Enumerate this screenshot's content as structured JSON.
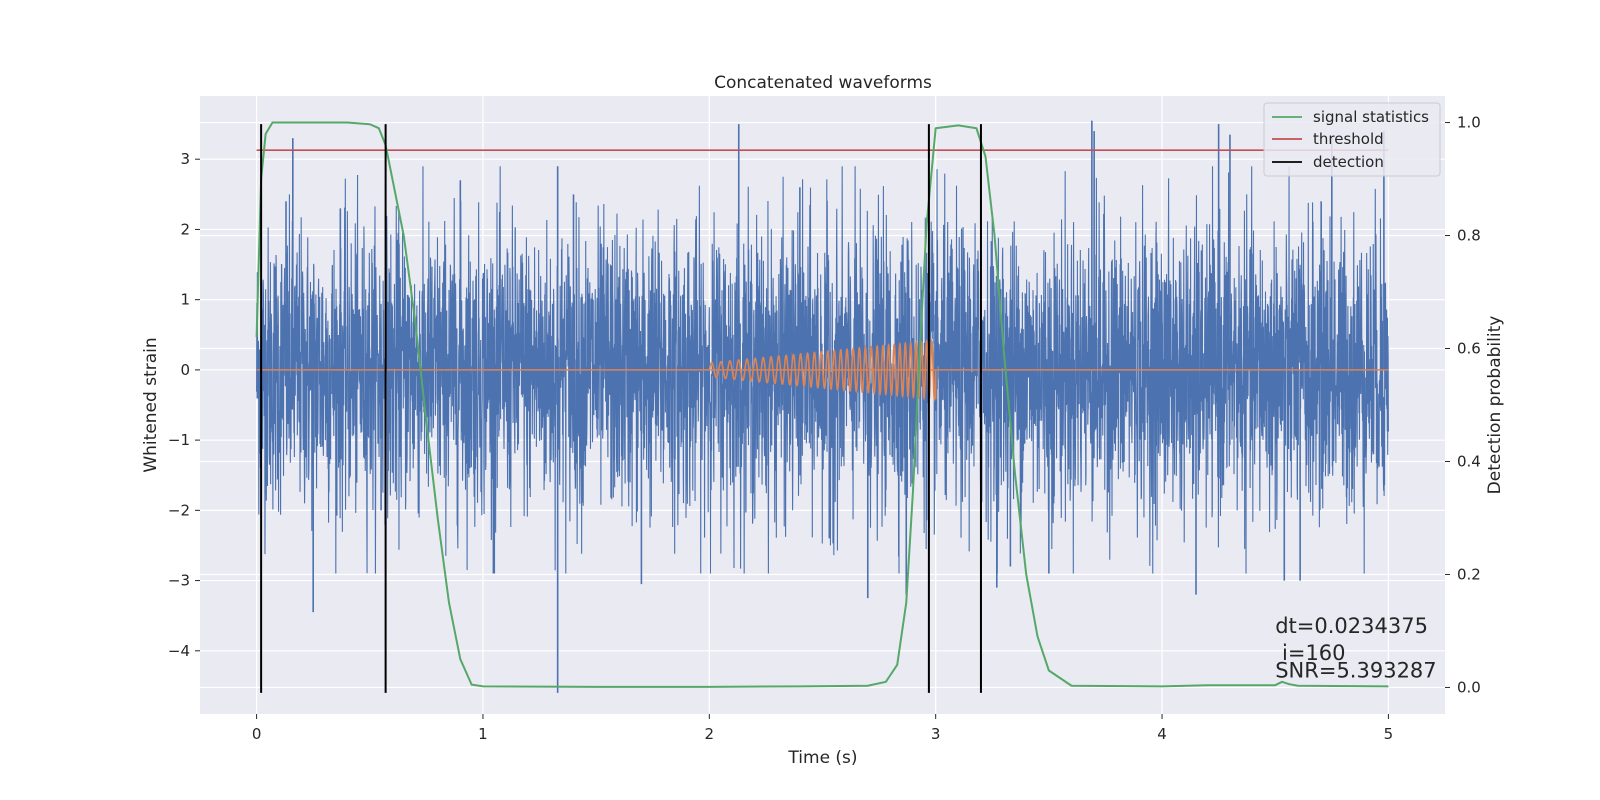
{
  "chart_data": {
    "type": "line",
    "title": "Concatenated waveforms",
    "xlabel": "Time (s)",
    "ylabel": "Whitened strain",
    "ylabel_right": "Detection probability",
    "xlim": [
      -0.25,
      5.25
    ],
    "ylim": [
      -4.9,
      3.9
    ],
    "ylim_right": [
      -0.047,
      1.047
    ],
    "xticks": [
      0,
      1,
      2,
      3,
      4,
      5
    ],
    "xtick_labels": [
      "0",
      "1",
      "2",
      "3",
      "4",
      "5"
    ],
    "yticks": [
      -4,
      -3,
      -2,
      -1,
      0,
      1,
      2,
      3
    ],
    "ytick_labels": [
      "−4",
      "−3",
      "−2",
      "−1",
      "0",
      "1",
      "2",
      "3"
    ],
    "yticks_right": [
      0.0,
      0.2,
      0.4,
      0.6,
      0.8,
      1.0
    ],
    "ytick_labels_right": [
      "0.0",
      "0.2",
      "0.4",
      "0.6",
      "0.8",
      "1.0"
    ],
    "grid": true,
    "legend_position": "top-right",
    "colors": {
      "background": "#eaeaf2",
      "grid": "#ffffff",
      "strain": "#4c72b0",
      "template": "#dd8452",
      "signal_statistics": "#55a868",
      "threshold": "#c44e52",
      "detection": "#000000"
    },
    "series": [
      {
        "name": "signal statistics",
        "axis": "right",
        "x": [
          0,
          0.02,
          0.04,
          0.07,
          0.1,
          0.2,
          0.3,
          0.4,
          0.5,
          0.54,
          0.57,
          0.6,
          0.65,
          0.7,
          0.75,
          0.8,
          0.85,
          0.9,
          0.95,
          1.0,
          1.5,
          2.0,
          2.4,
          2.7,
          2.78,
          2.83,
          2.87,
          2.9,
          2.93,
          2.96,
          3.0,
          3.1,
          3.18,
          3.22,
          3.26,
          3.3,
          3.35,
          3.4,
          3.45,
          3.5,
          3.6,
          4.0,
          4.2,
          4.5,
          4.53,
          4.56,
          4.6,
          5.0
        ],
        "y": [
          0.62,
          0.9,
          0.98,
          1.0,
          1.0,
          1.0,
          1.0,
          1.0,
          0.997,
          0.99,
          0.96,
          0.9,
          0.8,
          0.65,
          0.47,
          0.3,
          0.15,
          0.05,
          0.005,
          0.002,
          0.001,
          0.001,
          0.002,
          0.003,
          0.01,
          0.04,
          0.15,
          0.35,
          0.6,
          0.82,
          0.99,
          0.995,
          0.99,
          0.94,
          0.8,
          0.6,
          0.38,
          0.2,
          0.09,
          0.03,
          0.003,
          0.002,
          0.004,
          0.004,
          0.01,
          0.006,
          0.003,
          0.002
        ]
      },
      {
        "name": "threshold",
        "axis": "right",
        "x": [
          0,
          5
        ],
        "y": [
          0.951,
          0.951
        ]
      },
      {
        "name": "detection",
        "axis": "left",
        "vlines": [
          0.02,
          0.57,
          2.97,
          3.2
        ]
      }
    ],
    "strain_noise": {
      "axis": "left",
      "x_range": [
        0,
        5
      ],
      "amplitude_sigma": 1.0
    },
    "strain_spikes": [
      {
        "x": 0.25,
        "y": -3.45
      },
      {
        "x": 0.16,
        "y": 3.3
      },
      {
        "x": 0.13,
        "y": 2.4
      },
      {
        "x": 0.37,
        "y": 2.3
      },
      {
        "x": 0.57,
        "y": 2.25
      },
      {
        "x": 0.55,
        "y": -2.0
      },
      {
        "x": 1.33,
        "y": -4.6
      },
      {
        "x": 1.33,
        "y": 2.9
      },
      {
        "x": 1.7,
        "y": -3.05
      },
      {
        "x": 2.13,
        "y": 3.5
      },
      {
        "x": 2.4,
        "y": 2.6
      },
      {
        "x": 2.7,
        "y": -3.25
      },
      {
        "x": 2.87,
        "y": -3.2
      },
      {
        "x": 3.2,
        "y": -3.15
      },
      {
        "x": 3.27,
        "y": -3.1
      },
      {
        "x": 3.33,
        "y": -2.8
      },
      {
        "x": 3.69,
        "y": 3.55
      },
      {
        "x": 3.7,
        "y": 3.4
      },
      {
        "x": 4.25,
        "y": 3.5
      },
      {
        "x": 4.3,
        "y": 3.35
      },
      {
        "x": 4.15,
        "y": -3.2
      },
      {
        "x": 4.54,
        "y": -3.0
      },
      {
        "x": 4.61,
        "y": -3.0
      },
      {
        "x": 4.75,
        "y": 3.3
      },
      {
        "x": 4.98,
        "y": 3.4
      },
      {
        "x": 2.53,
        "y": -2.4
      },
      {
        "x": 1.4,
        "y": 2.5
      },
      {
        "x": 3.5,
        "y": -2.9
      },
      {
        "x": 0.9,
        "y": 2.7
      },
      {
        "x": 1.05,
        "y": -2.9
      }
    ],
    "template_chirp": {
      "axis": "left",
      "x_start": 2.0,
      "x_end": 3.0,
      "amp_start": 0.1,
      "amp_end": 0.42,
      "cycles": 34
    },
    "template_flat": {
      "axis": "left",
      "x": [
        0,
        5
      ],
      "y": 0
    },
    "annotations": [
      {
        "x": 4.5,
        "y": -3.75,
        "text": "dt=0.0234375"
      },
      {
        "x": 4.53,
        "y": -4.13,
        "text": "i=160"
      },
      {
        "x": 4.5,
        "y": -4.38,
        "text": "SNR=5.393287"
      }
    ]
  }
}
